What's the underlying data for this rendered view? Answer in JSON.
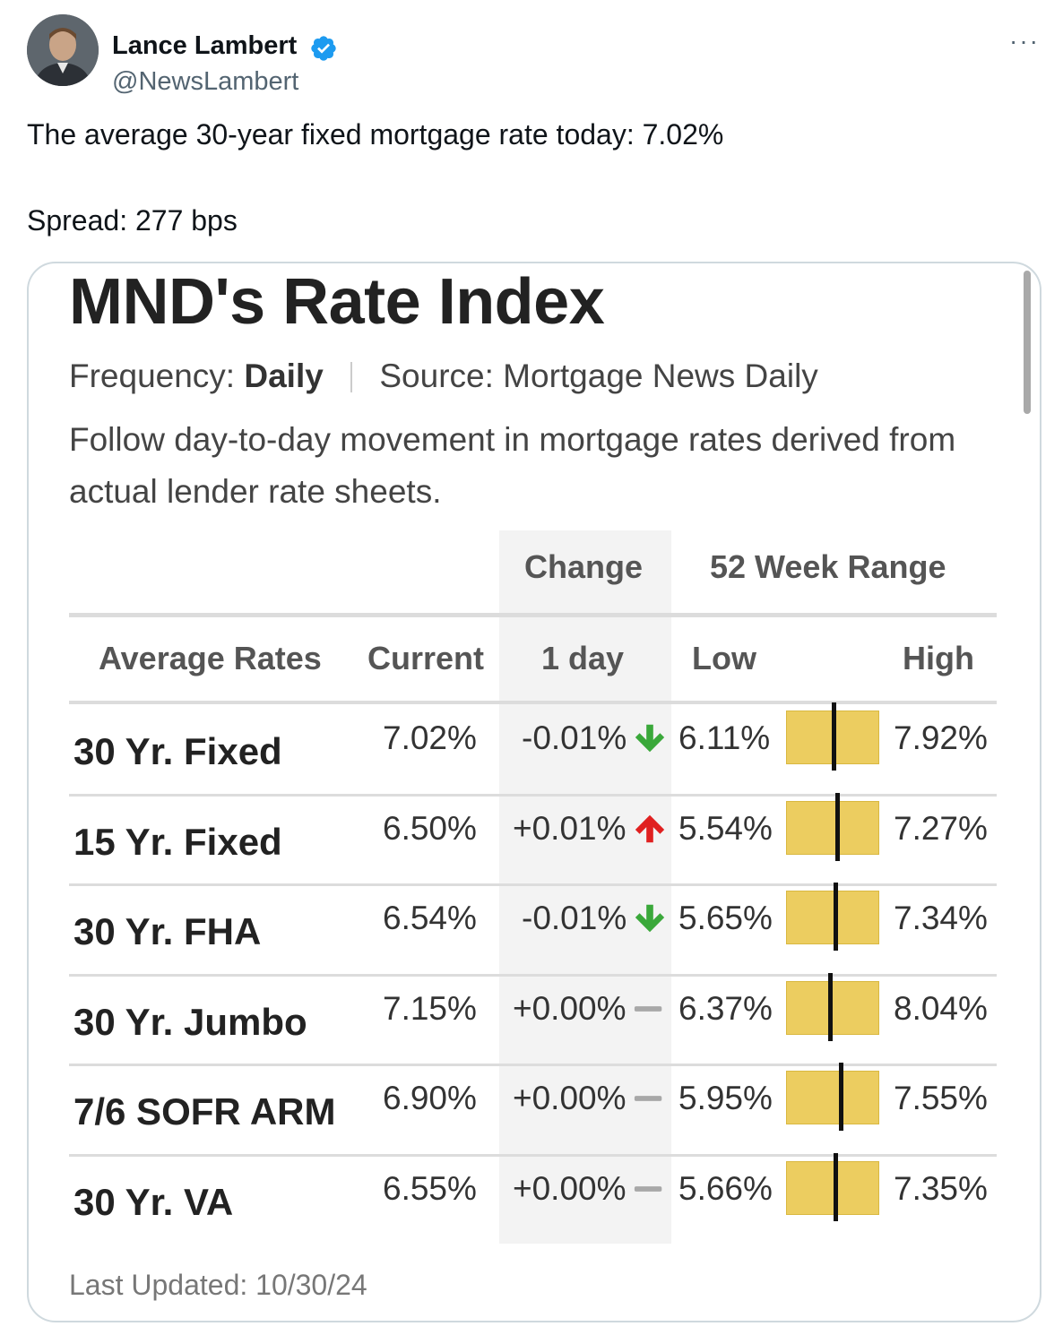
{
  "tweet": {
    "author_name": "Lance Lambert",
    "handle": "@NewsLambert",
    "more_label": "···",
    "text_line1": "The average 30-year fixed mortgage rate today: 7.02%",
    "text_line2": "Spread: 277 bps"
  },
  "card": {
    "title": "MND's Rate Index",
    "frequency_label": "Frequency:",
    "frequency_value": "Daily",
    "source": "Source: Mortgage News Daily",
    "description": "Follow day-to-day movement in mortgage rates derived from actual lender rate sheets.",
    "group_change": "Change",
    "group_range": "52 Week Range",
    "col_average": "Average Rates",
    "col_current": "Current",
    "col_day": "1 day",
    "col_low": "Low",
    "col_high": "High",
    "rows": [
      {
        "name": "30 Yr. Fixed",
        "current": "7.02%",
        "change": "-0.01%",
        "direction": "down",
        "low": "6.11%",
        "high": "7.92%",
        "position": 0.51
      },
      {
        "name": "15 Yr. Fixed",
        "current": "6.50%",
        "change": "+0.01%",
        "direction": "up",
        "low": "5.54%",
        "high": "7.27%",
        "position": 0.55
      },
      {
        "name": "30 Yr. FHA",
        "current": "6.54%",
        "change": "-0.01%",
        "direction": "down",
        "low": "5.65%",
        "high": "7.34%",
        "position": 0.53
      },
      {
        "name": "30 Yr. Jumbo",
        "current": "7.15%",
        "change": "+0.00%",
        "direction": "flat",
        "low": "6.37%",
        "high": "8.04%",
        "position": 0.47
      },
      {
        "name": "7/6 SOFR ARM",
        "current": "6.90%",
        "change": "+0.00%",
        "direction": "flat",
        "low": "5.95%",
        "high": "7.55%",
        "position": 0.59
      },
      {
        "name": "30 Yr. VA",
        "current": "6.55%",
        "change": "+0.00%",
        "direction": "flat",
        "low": "5.66%",
        "high": "7.35%",
        "position": 0.53
      }
    ],
    "last_updated": "Last Updated: 10/30/24"
  },
  "colors": {
    "down_arrow": "#3aa83a",
    "up_arrow": "#e02020",
    "flat_dash": "#a8a8a8",
    "range_bar": "#eccd60",
    "verified": "#1d9bf0"
  }
}
